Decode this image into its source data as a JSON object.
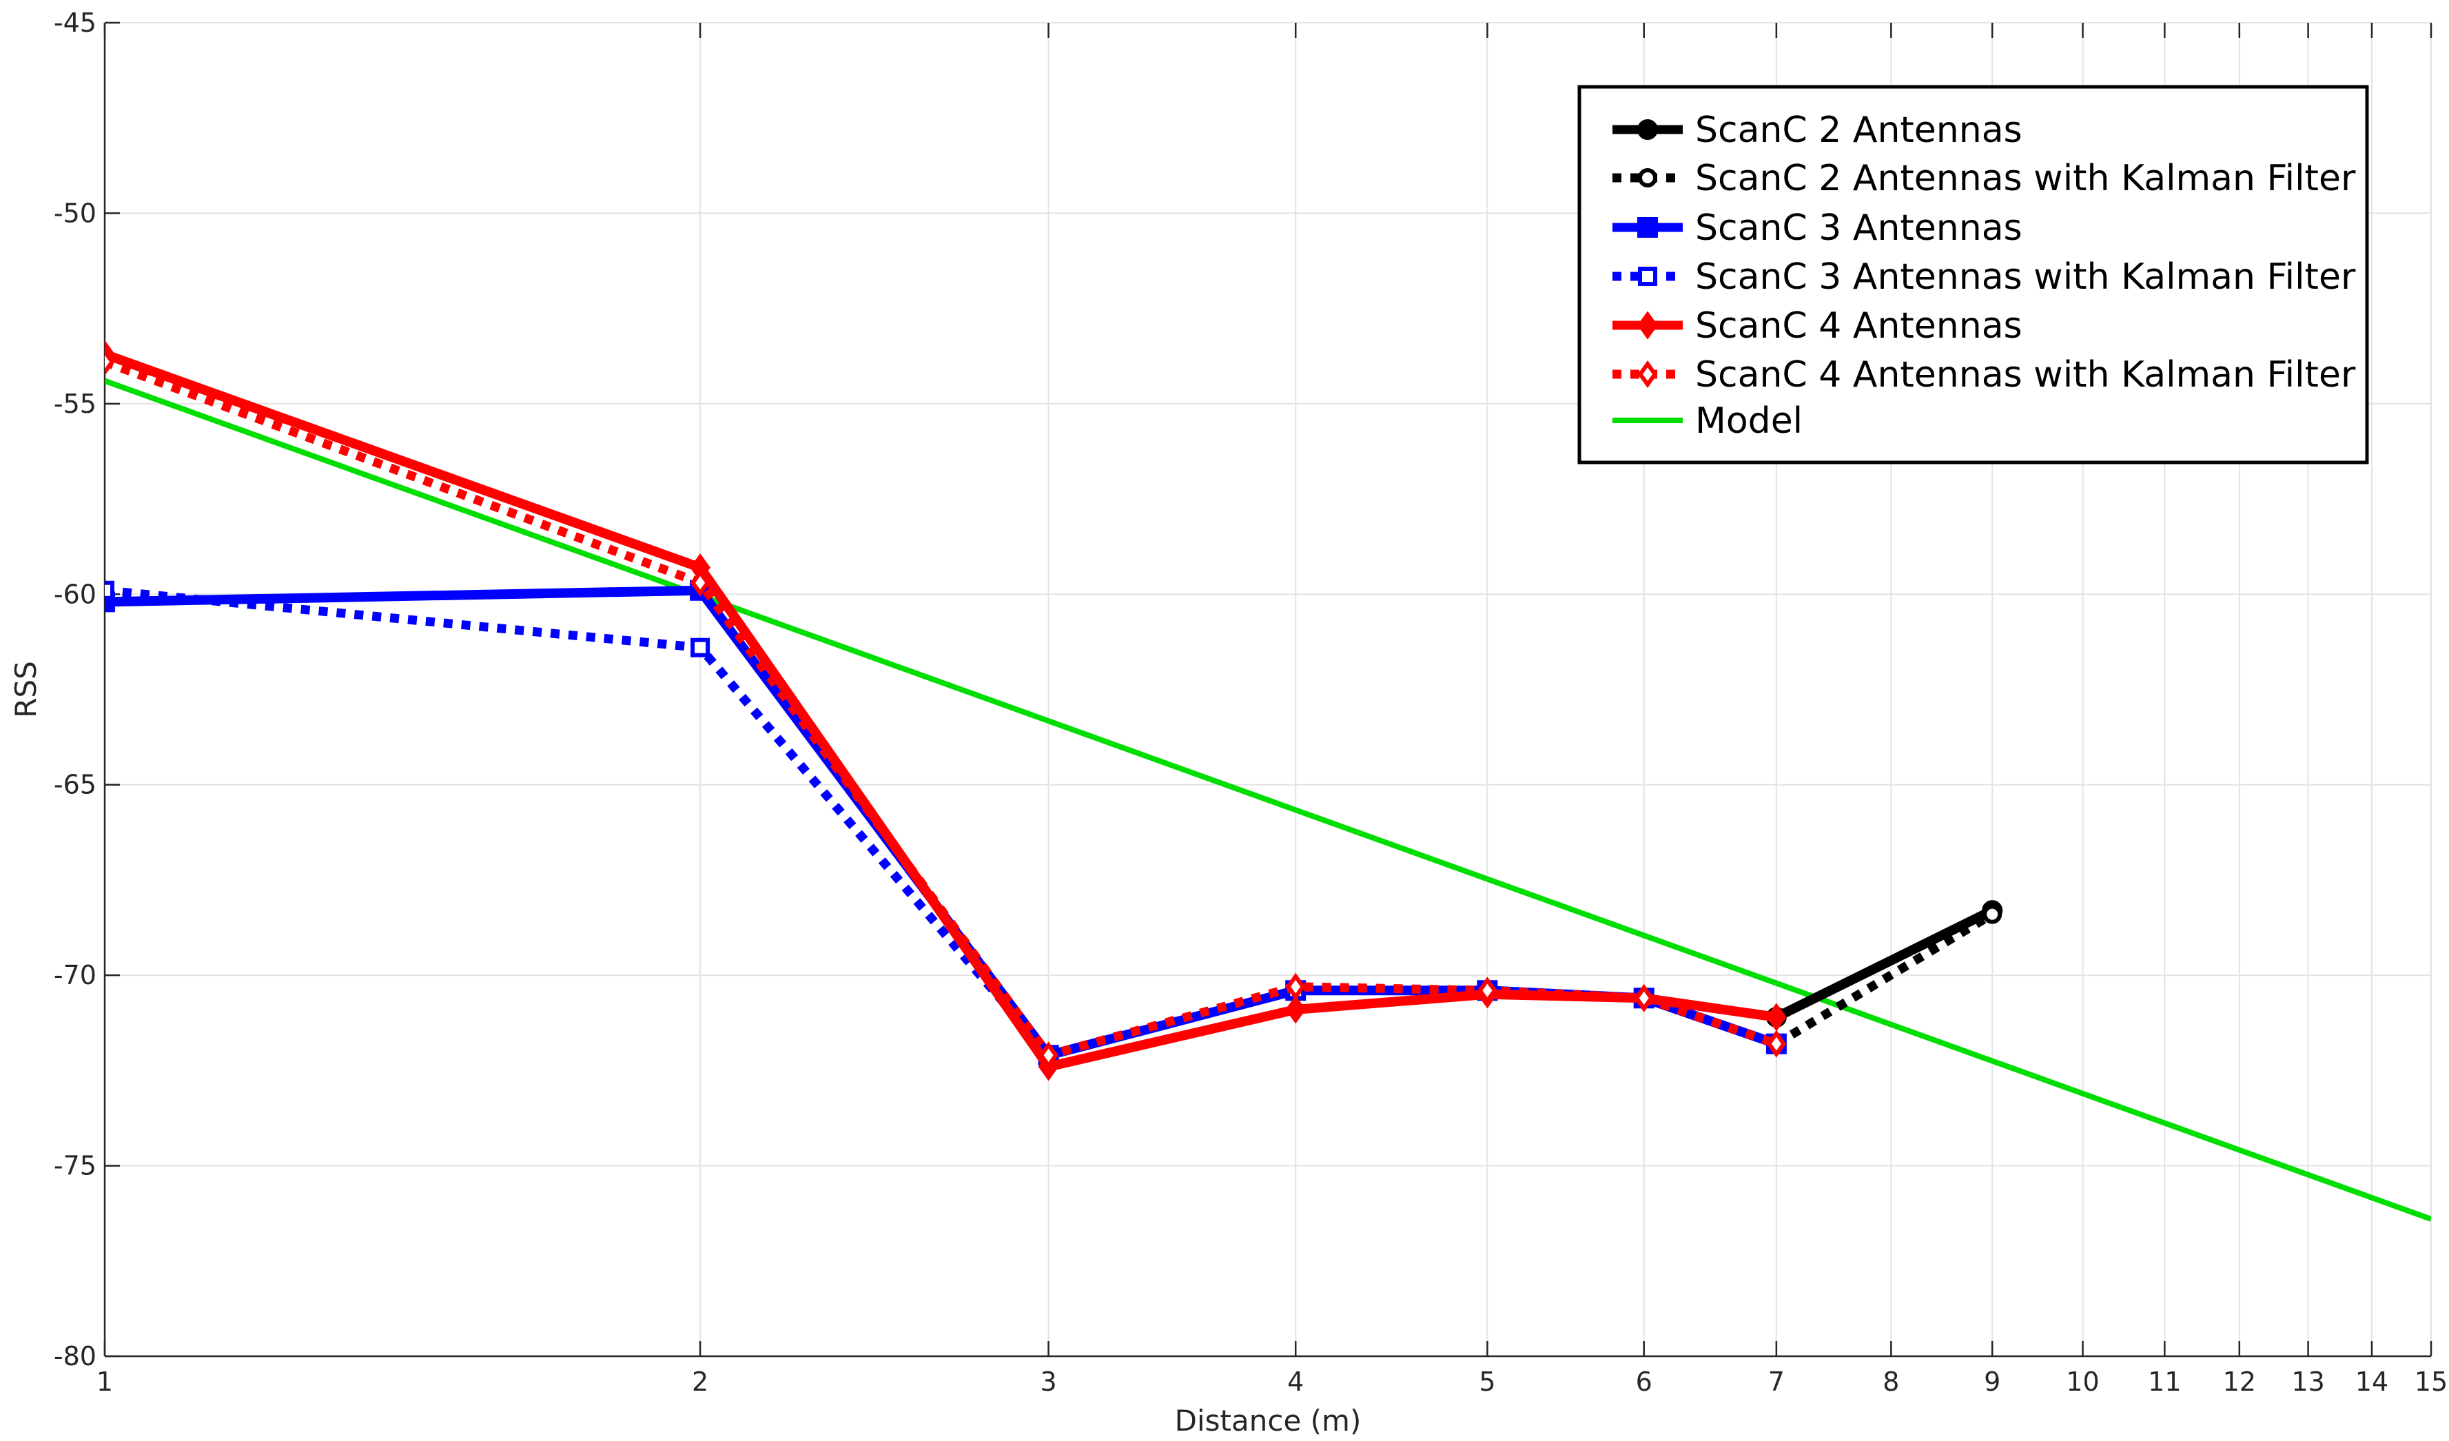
{
  "chart_data": {
    "type": "line",
    "title": "",
    "xlabel": "Distance (m)",
    "ylabel": "RSS",
    "xscale": "log",
    "xlim": [
      1,
      15
    ],
    "ylim": [
      -80,
      -45
    ],
    "xticks": [
      1,
      2,
      3,
      4,
      5,
      6,
      7,
      8,
      9,
      10,
      11,
      12,
      13,
      14,
      15
    ],
    "xtick_labels": [
      "1",
      "2",
      "3",
      "4",
      "5",
      "6",
      "7",
      "8",
      "9",
      "10",
      "11",
      "12",
      "13",
      "14",
      "15"
    ],
    "yticks": [
      -80,
      -75,
      -70,
      -65,
      -60,
      -55,
      -50,
      -45
    ],
    "ytick_labels": [
      "-80",
      "-75",
      "-70",
      "-65",
      "-60",
      "-55",
      "-50",
      "-45"
    ],
    "grid": true,
    "legend_position": "top-right",
    "series": [
      {
        "name": "ScanC 2 Antennas",
        "color": "#000000",
        "style": "solid",
        "marker": "circle",
        "x": [
          7,
          9
        ],
        "y": [
          -71.1,
          -68.3
        ]
      },
      {
        "name": "ScanC 2 Antennas with Kalman Filter",
        "color": "#000000",
        "style": "dotted",
        "marker": "circle",
        "x": [
          7,
          9
        ],
        "y": [
          -71.8,
          -68.4
        ]
      },
      {
        "name": "ScanC 3 Antennas",
        "color": "#0000ff",
        "style": "solid",
        "marker": "square",
        "x": [
          1,
          2,
          3,
          4,
          5,
          6,
          7
        ],
        "y": [
          -60.2,
          -59.9,
          -72.1,
          -70.4,
          -70.4,
          -70.6,
          -71.8
        ]
      },
      {
        "name": "ScanC 3 Antennas with Kalman Filter",
        "color": "#0000ff",
        "style": "dotted",
        "marker": "square",
        "x": [
          1,
          2,
          3,
          4,
          5,
          6,
          7
        ],
        "y": [
          -59.9,
          -61.4,
          -72.1,
          -70.4,
          -70.4,
          -70.6,
          -71.8
        ]
      },
      {
        "name": "ScanC 4 Antennas",
        "color": "#ff0000",
        "style": "solid",
        "marker": "diamond",
        "x": [
          1,
          2,
          3,
          4,
          5,
          6,
          7
        ],
        "y": [
          -53.7,
          -59.3,
          -72.4,
          -70.9,
          -70.5,
          -70.6,
          -71.1
        ]
      },
      {
        "name": "ScanC 4 Antennas with Kalman Filter",
        "color": "#ff0000",
        "style": "dotted",
        "marker": "diamond",
        "x": [
          1,
          2,
          3,
          4,
          5,
          6,
          7
        ],
        "y": [
          -53.9,
          -59.7,
          -72.1,
          -70.3,
          -70.4,
          -70.6,
          -71.8
        ]
      },
      {
        "name": "Model",
        "color": "#00dd00",
        "style": "solid",
        "marker": "none",
        "x": [
          1,
          15
        ],
        "y": [
          -54.4,
          -76.4
        ]
      }
    ]
  }
}
